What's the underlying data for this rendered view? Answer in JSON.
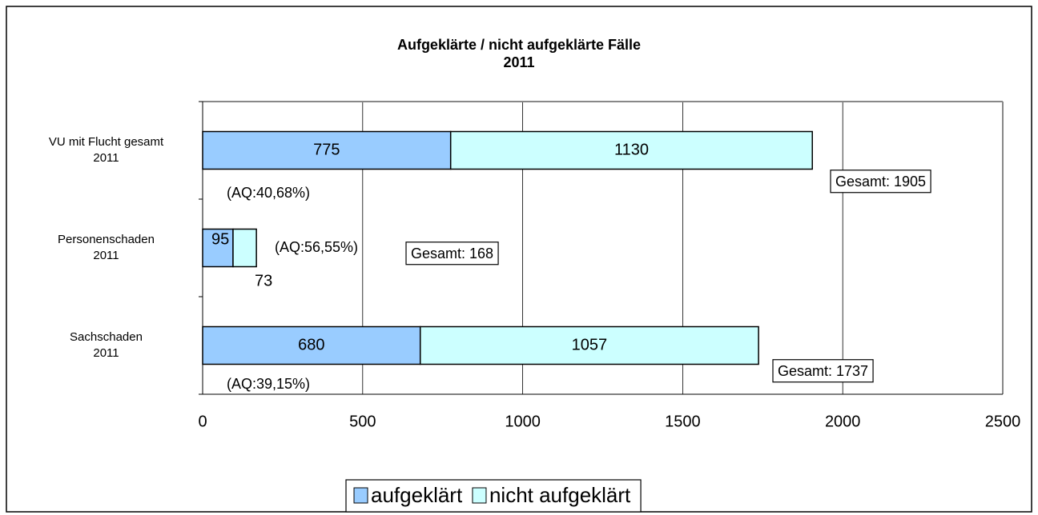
{
  "chart_data": {
    "type": "bar",
    "orientation": "horizontal",
    "stacked": true,
    "title": "Aufgeklärte / nicht aufgeklärte Fälle\n2011",
    "categories": [
      "VU mit Flucht gesamt\n2011",
      "Personenschaden\n2011",
      "Sachschaden\n2011"
    ],
    "series": [
      {
        "name": "aufgeklärt",
        "color": "#99ccff",
        "values": [
          775,
          95,
          680
        ]
      },
      {
        "name": "nicht aufgeklärt",
        "color": "#ccffff",
        "values": [
          1130,
          73,
          1057
        ]
      }
    ],
    "xlim": [
      0,
      2500
    ],
    "xticks": [
      0,
      500,
      1000,
      1500,
      2000,
      2500
    ],
    "grid": true,
    "legend": "bottom",
    "annotations": [
      "(AQ:40,68%)",
      "Gesamt: 1905",
      "(AQ:56,55%)",
      "Gesamt: 168",
      "(AQ:39,15%)",
      "Gesamt: 1737"
    ]
  }
}
